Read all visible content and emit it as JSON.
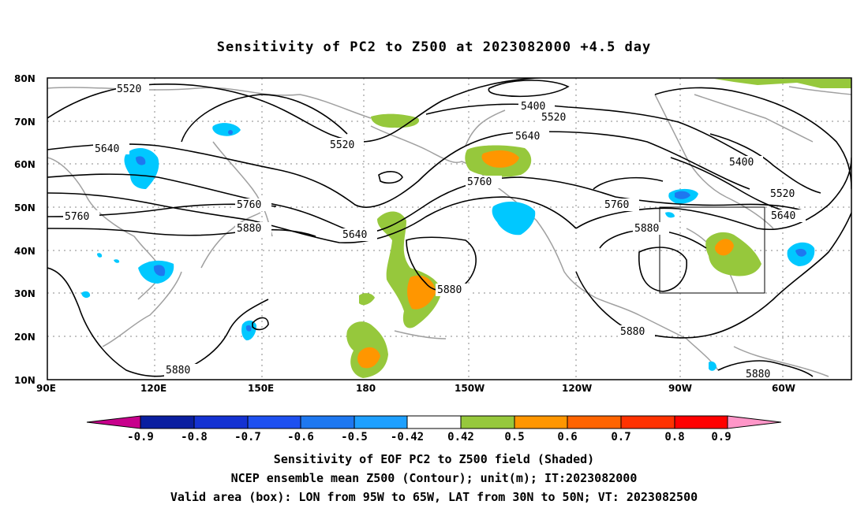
{
  "title": "Sensitivity of PC2 to Z500 at 2023082000 +4.5 day",
  "lat_labels": [
    "80N",
    "70N",
    "60N",
    "50N",
    "40N",
    "30N",
    "20N",
    "10N"
  ],
  "lon_labels": [
    "90E",
    "120E",
    "150E",
    "180",
    "150W",
    "120W",
    "90W",
    "60W"
  ],
  "contour_labels": {
    "c1": "5520",
    "c2": "5400",
    "c3": "5520",
    "c4": "5640",
    "c5": "5520",
    "c6": "5640",
    "c7": "5400",
    "c8": "5760",
    "c9": "5520",
    "c10": "5760",
    "c11": "5760",
    "c12": "5640",
    "c13": "5760",
    "c14": "5880",
    "c15": "5640",
    "c16": "5880",
    "c17": "5880",
    "c18": "5880",
    "c19": "5880",
    "c20": "5880"
  },
  "colorbar": {
    "labels": [
      "-0.9",
      "-0.8",
      "-0.7",
      "-0.6",
      "-0.5",
      "-0.42",
      "0.42",
      "0.5",
      "0.6",
      "0.7",
      "0.8",
      "0.9"
    ],
    "colors": [
      "#c8008c",
      "#0a1ea0",
      "#1432d2",
      "#1e50f0",
      "#1e78f0",
      "#1ea0ff",
      "#00c8ff",
      "#ffffff",
      "#96c83c",
      "#ff9600",
      "#ff6400",
      "#ff3200",
      "#ff0000",
      "#ff96c8"
    ]
  },
  "shading_colors": {
    "green": "#96c83c",
    "orange": "#ff9600",
    "darkorange": "#ff6400",
    "cyan": "#00c8ff",
    "blue": "#1e78f0",
    "darkblue": "#1432d2",
    "gray": "#a0a0a0"
  },
  "box": {
    "lon_range": "95W to 65W",
    "lat_range": "30N to 50N"
  },
  "captions": {
    "line1": "Sensitivity of EOF PC2 to Z500 field (Shaded)",
    "line2": "NCEP ensemble mean Z500 (Contour); unit(m); IT:2023082000",
    "line3": "Valid area (box): LON from 95W to 65W, LAT from 30N to 50N; VT: 2023082500"
  }
}
